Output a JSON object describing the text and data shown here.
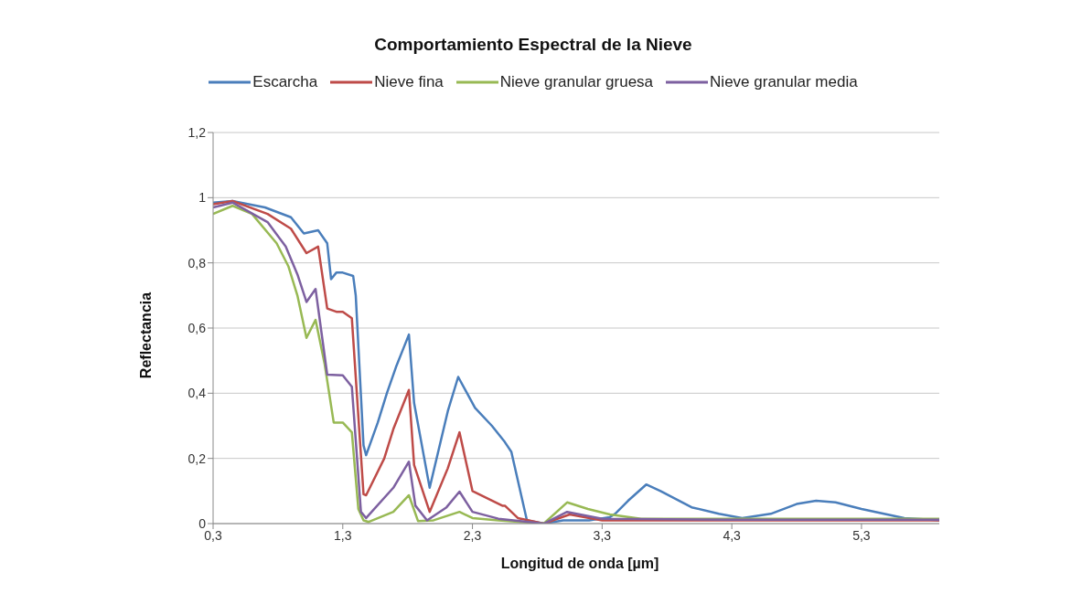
{
  "chart_data": {
    "type": "line",
    "title": "Comportamiento Espectral de la Nieve",
    "xlabel": "Longitud de onda [µm]",
    "ylabel": "Reflectancia",
    "xlim": [
      0.3,
      5.9
    ],
    "xticks": [
      {
        "value": 0.3,
        "label": "0,3"
      },
      {
        "value": 1.3,
        "label": "1,3"
      },
      {
        "value": 2.3,
        "label": "2,3"
      },
      {
        "value": 3.3,
        "label": "3,3"
      },
      {
        "value": 4.3,
        "label": "4,3"
      },
      {
        "value": 5.3,
        "label": "5,3"
      }
    ],
    "ylim": [
      0,
      1.2
    ],
    "yticks": [
      0,
      {
        "value": 0.2,
        "label": "0,2"
      },
      {
        "value": 0.4,
        "label": "0,4"
      },
      {
        "value": 0.6,
        "label": "0,6"
      },
      {
        "value": 0.8,
        "label": "0,8"
      },
      1,
      {
        "value": 1.2,
        "label": "1,2"
      }
    ],
    "grid": "y",
    "legend": "top",
    "marker": "none",
    "line_style": "solid",
    "series": [
      {
        "name": "Escarcha",
        "color": "#4a7ebb",
        "x": [
          0.3,
          0.45,
          0.7,
          0.9,
          1.0,
          1.11,
          1.18,
          1.21,
          1.25,
          1.3,
          1.38,
          1.4,
          1.46,
          1.48,
          1.57,
          1.64,
          1.71,
          1.77,
          1.81,
          1.85,
          1.97,
          2.11,
          2.19,
          2.32,
          2.45,
          2.55,
          2.6,
          2.72,
          2.85,
          3.0,
          3.2,
          3.36,
          3.4,
          3.5,
          3.64,
          3.75,
          3.99,
          4.2,
          4.38,
          4.6,
          4.8,
          4.95,
          5.1,
          5.3,
          5.63,
          5.9
        ],
        "values": [
          0.985,
          0.99,
          0.97,
          0.94,
          0.89,
          0.9,
          0.86,
          0.75,
          0.77,
          0.77,
          0.76,
          0.7,
          0.24,
          0.21,
          0.31,
          0.4,
          0.48,
          0.54,
          0.58,
          0.37,
          0.11,
          0.345,
          0.45,
          0.355,
          0.3,
          0.25,
          0.22,
          0.01,
          0.0,
          0.01,
          0.01,
          0.02,
          0.03,
          0.07,
          0.12,
          0.1,
          0.05,
          0.03,
          0.017,
          0.03,
          0.06,
          0.07,
          0.065,
          0.045,
          0.017,
          0.01
        ]
      },
      {
        "name": "Nieve fina",
        "color": "#be4b48",
        "x": [
          0.3,
          0.45,
          0.72,
          0.9,
          1.02,
          1.11,
          1.18,
          1.25,
          1.3,
          1.37,
          1.46,
          1.48,
          1.62,
          1.69,
          1.81,
          1.85,
          1.97,
          2.11,
          2.2,
          2.3,
          2.53,
          2.55,
          2.65,
          2.85,
          3.05,
          3.3,
          4.3,
          5.3,
          5.9
        ],
        "values": [
          0.98,
          0.99,
          0.95,
          0.905,
          0.83,
          0.85,
          0.66,
          0.65,
          0.65,
          0.63,
          0.09,
          0.087,
          0.2,
          0.29,
          0.41,
          0.18,
          0.036,
          0.17,
          0.28,
          0.1,
          0.055,
          0.055,
          0.017,
          0.0,
          0.028,
          0.01,
          0.01,
          0.01,
          0.01
        ]
      },
      {
        "name": "Nieve granular gruesa",
        "color": "#98b954",
        "x": [
          0.3,
          0.45,
          0.6,
          0.79,
          0.88,
          0.95,
          1.02,
          1.09,
          1.16,
          1.23,
          1.3,
          1.37,
          1.42,
          1.46,
          1.5,
          1.69,
          1.81,
          1.88,
          2.0,
          2.2,
          2.3,
          2.5,
          2.85,
          3.03,
          3.19,
          3.36,
          3.6,
          4.3,
          5.3,
          5.9
        ],
        "values": [
          0.95,
          0.975,
          0.95,
          0.86,
          0.79,
          0.7,
          0.57,
          0.625,
          0.49,
          0.31,
          0.31,
          0.28,
          0.045,
          0.01,
          0.005,
          0.036,
          0.087,
          0.008,
          0.01,
          0.036,
          0.017,
          0.01,
          0.0,
          0.065,
          0.045,
          0.028,
          0.015,
          0.015,
          0.015,
          0.015
        ]
      },
      {
        "name": "Nieve granular media",
        "color": "#7d60a0",
        "x": [
          0.3,
          0.45,
          0.72,
          0.86,
          0.95,
          1.02,
          1.09,
          1.18,
          1.3,
          1.37,
          1.44,
          1.48,
          1.69,
          1.81,
          1.86,
          1.95,
          2.1,
          2.2,
          2.3,
          2.5,
          2.85,
          3.03,
          3.3,
          4.3,
          5.3,
          5.9
        ],
        "values": [
          0.97,
          0.985,
          0.925,
          0.85,
          0.765,
          0.68,
          0.72,
          0.457,
          0.455,
          0.42,
          0.036,
          0.017,
          0.11,
          0.19,
          0.055,
          0.01,
          0.05,
          0.098,
          0.036,
          0.015,
          0.0,
          0.036,
          0.015,
          0.012,
          0.012,
          0.012
        ]
      }
    ]
  }
}
